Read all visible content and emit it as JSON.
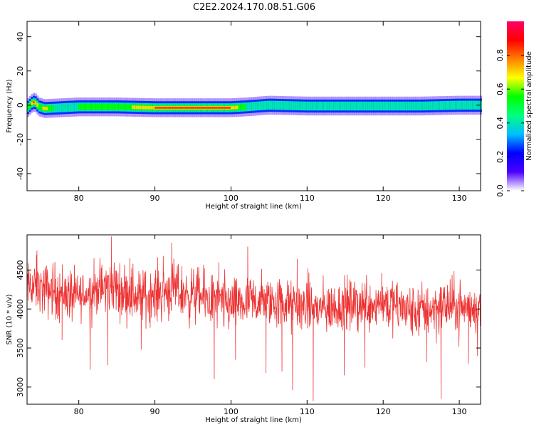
{
  "title": "C2E2.2024.170.08.51.G06",
  "chart_data": [
    {
      "type": "heatmap",
      "xlabel": "Height of straight line (km)",
      "ylabel": "Frequency (Hz)",
      "xlim": [
        73.2,
        132.8
      ],
      "ylim": [
        -50,
        49
      ],
      "x_ticks": [
        80,
        90,
        100,
        110,
        120,
        130
      ],
      "y_ticks": [
        -40,
        -20,
        0,
        20,
        40
      ],
      "colorbar": {
        "label": "Normalized spectral amplitude",
        "ticks": [
          0.0,
          0.2,
          0.4,
          0.6,
          0.8
        ],
        "range": [
          0,
          1
        ],
        "colormap": [
          "#ffffff",
          "#4b00ff",
          "#0000ff",
          "#00bfff",
          "#00ff80",
          "#00ff00",
          "#ffff00",
          "#ff8000",
          "#ff0000",
          "#ff0066"
        ]
      },
      "band": {
        "center_frequency": [
          [
            73.2,
            -2
          ],
          [
            73.8,
            1
          ],
          [
            74.2,
            2
          ],
          [
            74.8,
            -1
          ],
          [
            75.5,
            -2
          ],
          [
            80,
            -1
          ],
          [
            85,
            -1
          ],
          [
            90,
            -1.5
          ],
          [
            95,
            -1.5
          ],
          [
            100,
            -1.5
          ],
          [
            102,
            -1
          ],
          [
            105,
            0
          ],
          [
            110,
            -0.5
          ],
          [
            115,
            -0.5
          ],
          [
            120,
            -0.5
          ],
          [
            125,
            -0.5
          ],
          [
            130,
            0
          ],
          [
            132.8,
            0
          ]
        ],
        "peak_amplitude": [
          [
            73.2,
            0.5
          ],
          [
            74,
            0.9
          ],
          [
            75,
            0.6
          ],
          [
            75.5,
            0.85
          ],
          [
            77,
            0.45
          ],
          [
            80,
            0.55
          ],
          [
            85,
            0.6
          ],
          [
            90,
            0.85
          ],
          [
            95,
            0.9
          ],
          [
            100,
            0.85
          ],
          [
            102,
            0.55
          ],
          [
            105,
            0.5
          ],
          [
            110,
            0.45
          ],
          [
            115,
            0.45
          ],
          [
            120,
            0.45
          ],
          [
            125,
            0.45
          ],
          [
            130,
            0.45
          ],
          [
            132.8,
            0.45
          ]
        ]
      }
    },
    {
      "type": "line",
      "xlabel": "Height of straight line (km)",
      "ylabel": "SNR (10 * v/v)",
      "xlim": [
        73.2,
        132.8
      ],
      "ylim": [
        2780,
        4950
      ],
      "x_ticks": [
        80,
        90,
        100,
        110,
        120,
        130
      ],
      "y_ticks": [
        3000,
        3500,
        4000,
        4500
      ],
      "series": [
        {
          "color": "#ee3333",
          "trend": [
            [
              73.2,
              4300
            ],
            [
              76,
              4250
            ],
            [
              80,
              4150
            ],
            [
              84,
              4300
            ],
            [
              88,
              4150
            ],
            [
              92,
              4250
            ],
            [
              96,
              4150
            ],
            [
              100,
              4050
            ],
            [
              104,
              4100
            ],
            [
              108,
              4050
            ],
            [
              112,
              4000
            ],
            [
              116,
              4050
            ],
            [
              120,
              4100
            ],
            [
              124,
              3950
            ],
            [
              128,
              4050
            ],
            [
              132.8,
              4000
            ]
          ],
          "spikes": [
            [
              74.5,
              4750
            ],
            [
              77.8,
              3600
            ],
            [
              81.5,
              3220
            ],
            [
              82,
              4650
            ],
            [
              83.8,
              3280
            ],
            [
              84.3,
              4930
            ],
            [
              86.7,
              4650
            ],
            [
              88.2,
              3480
            ],
            [
              91.1,
              4680
            ],
            [
              92.2,
              4850
            ],
            [
              96.5,
              4520
            ],
            [
              97.8,
              3100
            ],
            [
              98.4,
              4600
            ],
            [
              100.6,
              3350
            ],
            [
              102.2,
              4800
            ],
            [
              104.6,
              3180
            ],
            [
              106.7,
              3200
            ],
            [
              108.1,
              2960
            ],
            [
              108.7,
              4640
            ],
            [
              110.8,
              2820
            ],
            [
              110.1,
              4520
            ],
            [
              114.9,
              3150
            ],
            [
              117.6,
              3250
            ],
            [
              119.8,
              4460
            ],
            [
              125.7,
              3320
            ],
            [
              127.6,
              2850
            ],
            [
              131.2,
              3300
            ],
            [
              132.4,
              3400
            ]
          ]
        }
      ]
    }
  ]
}
